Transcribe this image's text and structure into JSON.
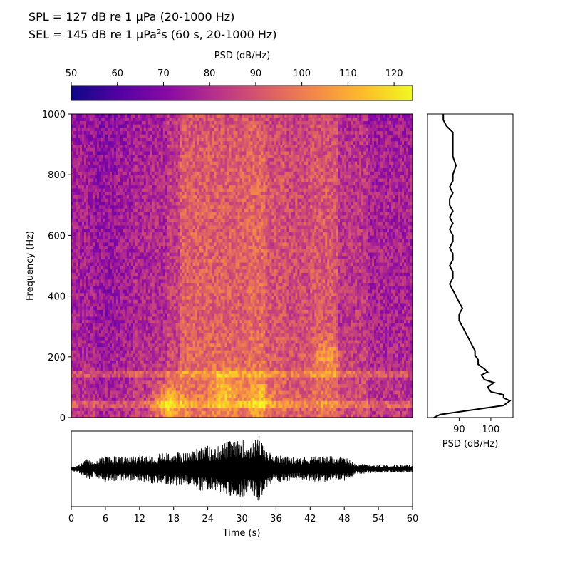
{
  "header": {
    "spl_line": "SPL = 127 dB re 1 µPa (20-1000 Hz)",
    "sel_line_prefix": "SEL = 145 dB re 1 µPa",
    "sel_line_sup": "2",
    "sel_line_suffix": "s (60 s, 20-1000 Hz)"
  },
  "chart_data": [
    {
      "type": "heatmap",
      "title": "",
      "xlabel": "",
      "ylabel": "Frequency (Hz)",
      "xlim": [
        0,
        60
      ],
      "ylim": [
        0,
        1000
      ],
      "x_ticks": [],
      "y_ticks": [
        0,
        200,
        400,
        600,
        800,
        1000
      ],
      "colormap": "plasma",
      "colorbar": {
        "label": "PSD (dB/Hz)",
        "range": [
          50,
          124
        ],
        "ticks": [
          50,
          60,
          70,
          80,
          90,
          100,
          110,
          120
        ],
        "placement": "top"
      },
      "time_bands_db": [
        {
          "t": [
            0,
            4
          ],
          "db": 77
        },
        {
          "t": [
            4,
            8
          ],
          "db": 74
        },
        {
          "t": [
            8,
            11
          ],
          "db": 76
        },
        {
          "t": [
            11,
            14
          ],
          "db": 79
        },
        {
          "t": [
            14,
            17
          ],
          "db": 80
        },
        {
          "t": [
            17,
            19
          ],
          "db": 85
        },
        {
          "t": [
            19,
            26
          ],
          "db": 93
        },
        {
          "t": [
            26,
            31
          ],
          "db": 93
        },
        {
          "t": [
            31,
            34
          ],
          "db": 95
        },
        {
          "t": [
            34,
            38
          ],
          "db": 90
        },
        {
          "t": [
            38,
            42
          ],
          "db": 88
        },
        {
          "t": [
            42,
            47
          ],
          "db": 91
        },
        {
          "t": [
            47,
            52
          ],
          "db": 83
        },
        {
          "t": [
            52,
            60
          ],
          "db": 78
        }
      ],
      "horizontal_lines_hz": [
        45,
        145
      ],
      "hotspots": [
        {
          "t": 17,
          "f": 50,
          "db": 114
        },
        {
          "t": 27,
          "f": 90,
          "db": 110
        },
        {
          "t": 33,
          "f": 70,
          "db": 108
        },
        {
          "t": 45,
          "f": 200,
          "db": 104
        }
      ]
    },
    {
      "type": "line",
      "title": "",
      "xlabel": "PSD (dB/Hz)",
      "ylabel": "",
      "x_ticks": [
        90,
        100
      ],
      "xlim": [
        80,
        107
      ],
      "ylim": [
        0,
        1000
      ],
      "series": [
        {
          "f": [
            0,
            10,
            25,
            40,
            55,
            65,
            75,
            85,
            100,
            115,
            125,
            140,
            150,
            160,
            175,
            190,
            205,
            220,
            240,
            260,
            280,
            300,
            320,
            340,
            360,
            380,
            400,
            420,
            440,
            460,
            480,
            500,
            520,
            540,
            560,
            580,
            600,
            620,
            640,
            660,
            680,
            700,
            720,
            740,
            760,
            780,
            800,
            830,
            860,
            890,
            920,
            940,
            960,
            980,
            1000
          ],
          "psd_db": [
            82,
            84,
            94,
            104,
            106,
            104,
            104,
            100,
            99,
            101,
            98,
            97,
            99,
            98,
            96,
            96,
            95,
            95,
            94,
            93,
            92,
            91,
            90,
            90,
            91,
            90,
            89,
            88,
            87,
            88,
            88,
            87,
            88,
            88,
            87,
            88,
            88,
            87,
            88,
            87,
            88,
            87,
            87,
            88,
            87,
            88,
            88,
            89,
            88,
            88,
            88,
            88,
            86,
            85,
            85
          ]
        }
      ]
    },
    {
      "type": "line",
      "title": "",
      "xlabel": "Time (s)",
      "ylabel": "",
      "xlim": [
        0,
        60
      ],
      "ylim": [
        -1,
        1
      ],
      "x_ticks": [
        0,
        6,
        12,
        18,
        24,
        30,
        36,
        42,
        48,
        54,
        60
      ],
      "y_ticks": [],
      "envelope": {
        "t": [
          0,
          1,
          2,
          3,
          4,
          5,
          6,
          8,
          10,
          12,
          14,
          16,
          18,
          20,
          21,
          22,
          23,
          24,
          25,
          26,
          27,
          28,
          29,
          30,
          31,
          32,
          33,
          34,
          35,
          36,
          38,
          40,
          42,
          44,
          46,
          48,
          50,
          52,
          54,
          56,
          58,
          60
        ],
        "amplitude": [
          0.06,
          0.08,
          0.2,
          0.3,
          0.17,
          0.28,
          0.35,
          0.34,
          0.3,
          0.36,
          0.38,
          0.42,
          0.45,
          0.43,
          0.45,
          0.58,
          0.6,
          0.62,
          0.55,
          0.62,
          0.7,
          0.75,
          0.72,
          0.8,
          0.65,
          0.7,
          0.95,
          0.55,
          0.42,
          0.36,
          0.34,
          0.3,
          0.33,
          0.35,
          0.33,
          0.32,
          0.15,
          0.12,
          0.11,
          0.1,
          0.1,
          0.1
        ]
      }
    }
  ]
}
